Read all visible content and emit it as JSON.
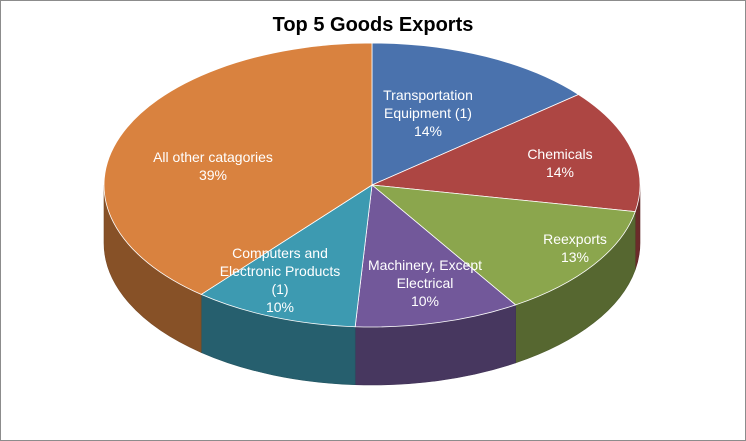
{
  "chart_data": {
    "type": "pie",
    "title": "Top 5 Goods Exports",
    "slices": [
      {
        "label_lines": [
          "Transportation",
          "Equipment (1)"
        ],
        "percent_label": "14%",
        "value": 14,
        "color": "#4a72ad"
      },
      {
        "label_lines": [
          "Chemicals"
        ],
        "percent_label": "14%",
        "value": 14,
        "color": "#ad4643"
      },
      {
        "label_lines": [
          "Reexports"
        ],
        "percent_label": "13%",
        "value": 13,
        "color": "#8ba64d"
      },
      {
        "label_lines": [
          "Machinery, Except",
          "Electrical"
        ],
        "percent_label": "10%",
        "value": 10,
        "color": "#72589a"
      },
      {
        "label_lines": [
          "Computers and",
          "Electronic Products",
          "(1)"
        ],
        "percent_label": "10%",
        "value": 10,
        "color": "#3d9ab1"
      },
      {
        "label_lines": [
          "All other catagories"
        ],
        "percent_label": "39%",
        "value": 39,
        "color": "#d9823f"
      }
    ]
  }
}
